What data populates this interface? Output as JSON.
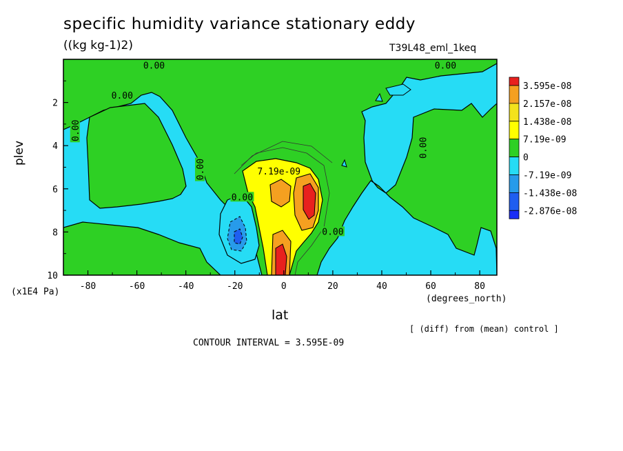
{
  "chart_data": {
    "type": "heatmap",
    "title": "specific humidity variance stationary eddy",
    "units": "((kg kg-1)2)",
    "run_name": "T39L48_eml_1keq",
    "xlabel": "lat",
    "x_units": "(degrees_north)",
    "ylabel": "plev",
    "y_units": "(x1E4 Pa)",
    "xlim": [
      -90,
      87
    ],
    "ylim": [
      10,
      0
    ],
    "x_ticks": [
      -80,
      -60,
      -40,
      -20,
      0,
      20,
      40,
      60,
      80
    ],
    "y_ticks": [
      2,
      4,
      6,
      8,
      10
    ],
    "x_tick_labels": [
      "-80",
      "-60",
      "-40",
      "-20",
      "0",
      "20",
      "40",
      "60",
      "80"
    ],
    "y_tick_labels": [
      "2",
      "4",
      "6",
      "8",
      "10"
    ],
    "colorbar": {
      "labels": [
        "3.595e-08",
        "2.157e-08",
        "1.438e-08",
        "7.19e-09",
        "0",
        "-7.19e-09",
        "-1.438e-08",
        "-2.876e-08"
      ],
      "colors": [
        "#e8211e",
        "#f5a020",
        "#f3e21c",
        "#ffff00",
        "#2ed024",
        "#26dcf5",
        "#279bea",
        "#1f5ef0",
        "#1a2ef5"
      ]
    },
    "contour_labels": [
      {
        "text": "0.00",
        "x": -53,
        "y": 0.3
      },
      {
        "text": "0.00",
        "x": 66,
        "y": 0.3
      },
      {
        "text": "0.00",
        "x": -66,
        "y": 1.7
      },
      {
        "text": "0.00",
        "x": -85,
        "y": 3.3
      },
      {
        "text": "0.00",
        "x": -34,
        "y": 5.1
      },
      {
        "text": "0.00",
        "x": 57,
        "y": 4.1
      },
      {
        "text": "7.19e-09",
        "x": -2,
        "y": 5.2
      },
      {
        "text": "0.00",
        "x": -17,
        "y": 6.4
      },
      {
        "text": "0.00",
        "x": 20,
        "y": 8.0
      }
    ],
    "contour_interval_text": "CONTOUR INTERVAL = 3.595E-09",
    "note": "[ (diff) from (mean) control ]"
  }
}
